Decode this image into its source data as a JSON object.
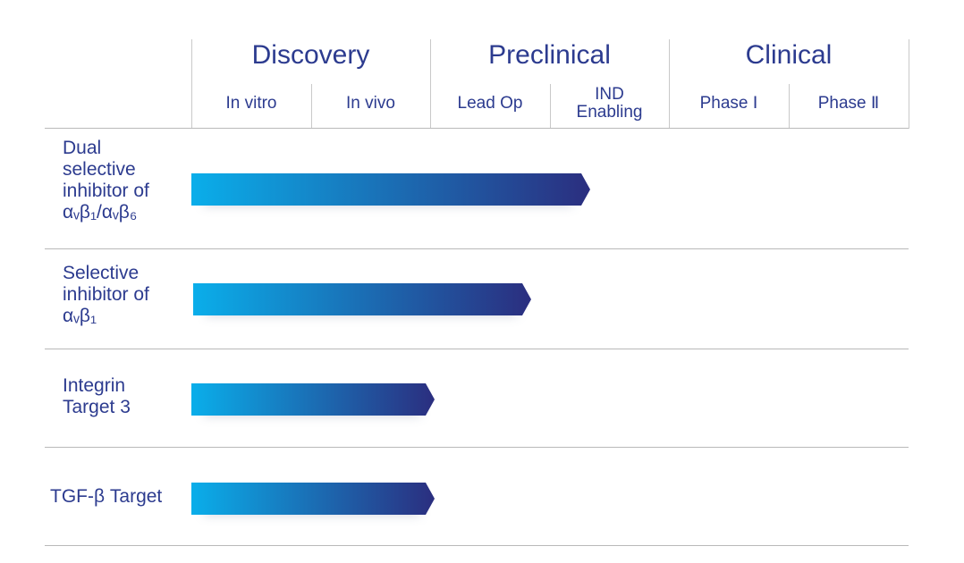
{
  "stages": [
    "Discovery",
    "Preclinical",
    "Clinical"
  ],
  "substages": [
    "In vitro",
    "In vivo",
    "Lead Op",
    "IND\nEnabling",
    "Phase Ⅰ",
    "Phase Ⅱ"
  ],
  "programs": [
    {
      "lines": [
        "Dual",
        "selective",
        "inhibitor of"
      ],
      "formula": "αᵥβ₁/αᵥβ₆"
    },
    {
      "lines": [
        "Selective",
        "inhibitor of"
      ],
      "formula": "αᵥβ₁"
    },
    {
      "lines": [
        "Integrin",
        "Target 3"
      ]
    },
    {
      "lines": [
        "TGF-β Target"
      ]
    }
  ],
  "progress": [
    {
      "program": "Dual selective inhibitor of αvβ1/αvβ6",
      "reaches": "IND Enabling"
    },
    {
      "program": "Selective inhibitor of αvβ1",
      "reaches": "Lead Op"
    },
    {
      "program": "Integrin Target 3",
      "reaches": "In vivo"
    },
    {
      "program": "TGF-β Target",
      "reaches": "In vivo"
    }
  ],
  "colors": {
    "bar_start": "#0aaeea",
    "bar_end": "#2b2e7f",
    "text": "#2c3b8f",
    "grid": "#c9c9c9"
  }
}
